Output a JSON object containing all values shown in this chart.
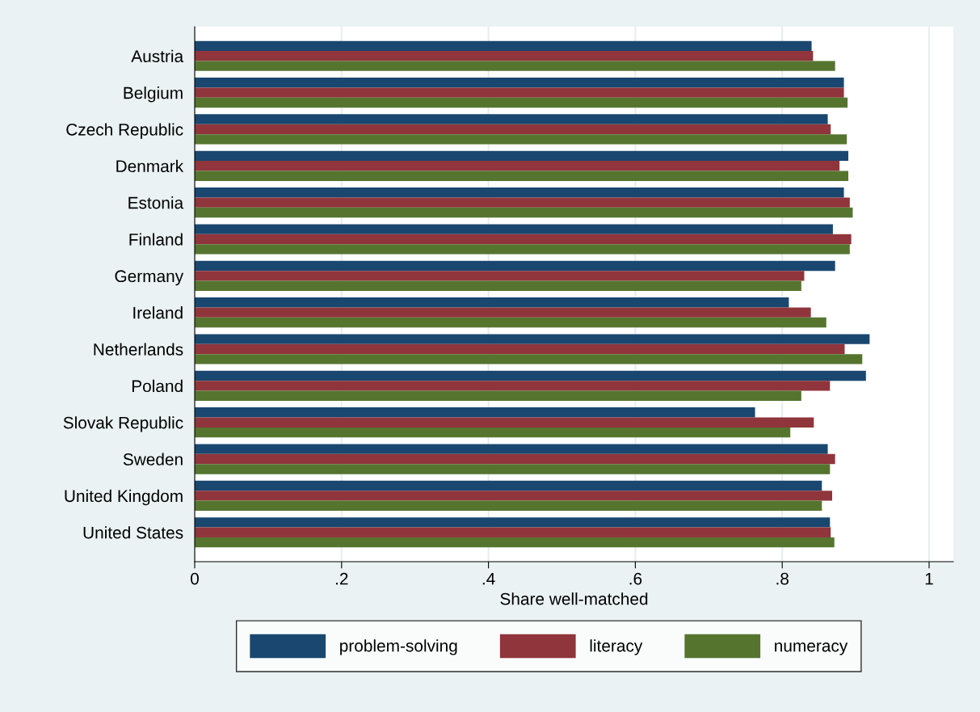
{
  "chart_data": {
    "type": "bar",
    "orientation": "horizontal",
    "xlabel": "Share well-matched",
    "categories": [
      "Austria",
      "Belgium",
      "Czech Republic",
      "Denmark",
      "Estonia",
      "Finland",
      "Germany",
      "Ireland",
      "Netherlands",
      "Poland",
      "Slovak Republic",
      "Sweden",
      "United Kingdom",
      "United States"
    ],
    "series": [
      {
        "name": "problem-solving",
        "color": "#1a476f",
        "values": [
          0.84,
          0.884,
          0.862,
          0.89,
          0.884,
          0.869,
          0.872,
          0.809,
          0.919,
          0.914,
          0.763,
          0.862,
          0.854,
          0.865
        ]
      },
      {
        "name": "literacy",
        "color": "#90353b",
        "values": [
          0.842,
          0.884,
          0.866,
          0.878,
          0.892,
          0.894,
          0.83,
          0.839,
          0.885,
          0.865,
          0.843,
          0.872,
          0.868,
          0.866
        ]
      },
      {
        "name": "numeracy",
        "color": "#55752f",
        "values": [
          0.872,
          0.889,
          0.888,
          0.89,
          0.896,
          0.892,
          0.826,
          0.86,
          0.909,
          0.826,
          0.811,
          0.865,
          0.854,
          0.871
        ]
      }
    ],
    "xlim": [
      0,
      1.033
    ],
    "xticks": [
      0,
      {
        "value": 0.2,
        "label": ".2"
      },
      {
        "value": 0.4,
        "label": ".4"
      },
      {
        "value": 0.6,
        "label": ".6"
      },
      {
        "value": 0.8,
        "label": ".8"
      },
      1
    ],
    "grid": "x",
    "legend": "bottom"
  }
}
